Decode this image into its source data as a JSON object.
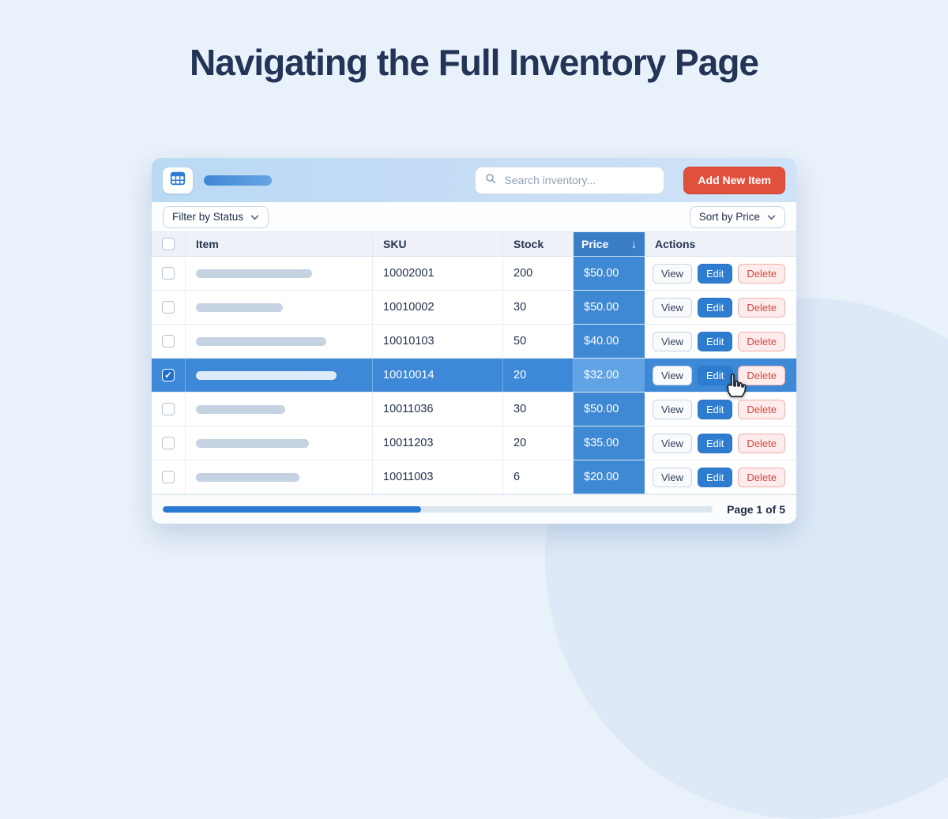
{
  "page_title": "Navigating the Full Inventory Page",
  "window": {
    "header": {
      "search": {
        "placeholder": "Search inventory..."
      },
      "add_button_label": "Add New Item"
    },
    "toolbar": {
      "filter_dropdown": "Filter by Status",
      "sort_dropdown": "Sort by Price",
      "chevron_icon": "▾"
    },
    "table": {
      "select_all_checked": false,
      "columns": {
        "item": "Item",
        "sku": "SKU",
        "stock": "Stock",
        "price": "Price",
        "actions": "Actions"
      },
      "sort": {
        "column": "Price",
        "direction": "desc",
        "icon": "↓"
      },
      "action_labels": {
        "view": "View",
        "edit": "Edit",
        "delete": "Delete"
      },
      "rows": [
        {
          "item_placeholder_width": 147,
          "sku": "10002001",
          "stock": "200",
          "price": "$50.00",
          "selected": false
        },
        {
          "item_placeholder_width": 110,
          "sku": "10010002",
          "stock": "30",
          "price": "$50.00",
          "selected": false
        },
        {
          "item_placeholder_width": 165,
          "sku": "10010103",
          "stock": "50",
          "price": "$40.00",
          "selected": false
        },
        {
          "item_placeholder_width": 178,
          "sku": "10010014",
          "stock": "20",
          "price": "$32.00",
          "selected": true
        },
        {
          "item_placeholder_width": 113,
          "sku": "10011036",
          "stock": "30",
          "price": "$50.00",
          "selected": false
        },
        {
          "item_placeholder_width": 143,
          "sku": "10011203",
          "stock": "20",
          "price": "$35.00",
          "selected": false
        },
        {
          "item_placeholder_width": 131,
          "sku": "10011003",
          "stock": "6",
          "price": "$20.00",
          "selected": false
        }
      ]
    },
    "footer": {
      "progress_percent": 47,
      "page_label": "Page 1 of 5"
    }
  },
  "colors": {
    "accent_blue": "#2e7cd0",
    "price_column_blue": "#3f88d4",
    "price_header_blue": "#3a7ec8",
    "selected_row_blue": "#3d89d8",
    "add_button_red": "#e1503c",
    "delete_red": "#d14a42",
    "title_navy": "#243457",
    "background": "#e9f1fa"
  }
}
